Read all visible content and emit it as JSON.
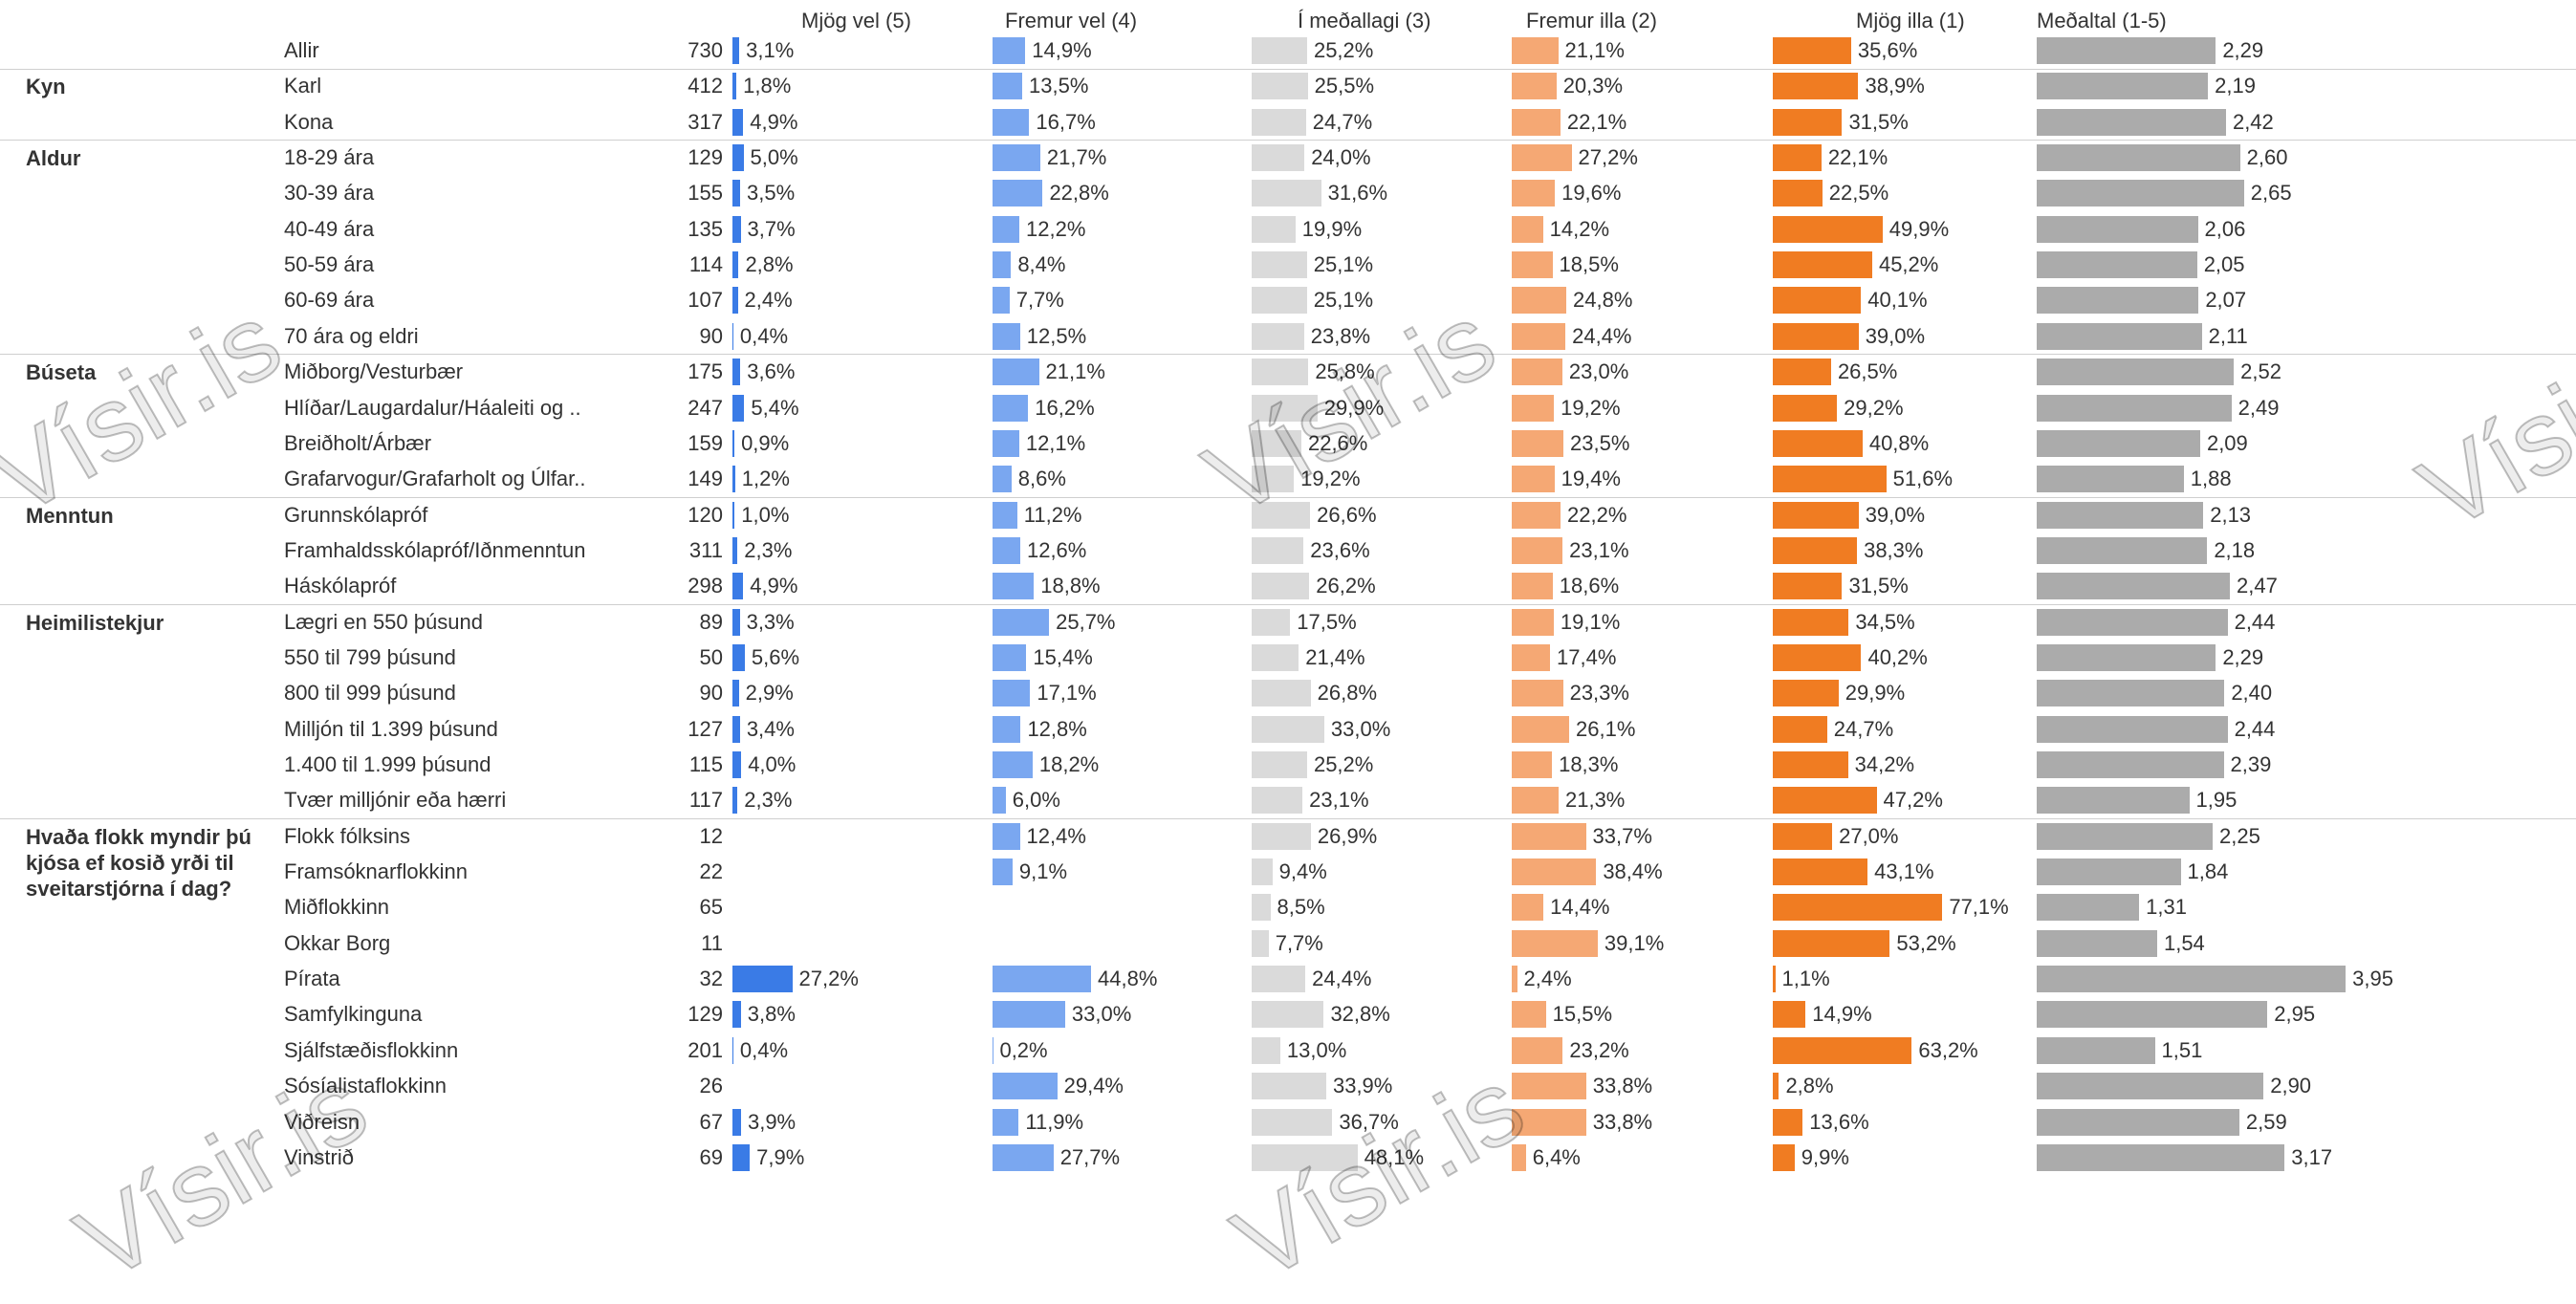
{
  "table": {
    "watermark": "Vísir.is",
    "columns": [
      {
        "name": "Mjög vel (5)",
        "color": "#3a7be6"
      },
      {
        "name": "Fremur vel (4)",
        "color": "#7aa7f0"
      },
      {
        "name": "Í meðallagi (3)",
        "color": "#dadada"
      },
      {
        "name": "Fremur illa (2)",
        "color": "#f5a874"
      },
      {
        "name": "Mjög illa (1)",
        "color": "#f07c22"
      },
      {
        "name": "Meðaltal (1-5)",
        "color": "#ababab"
      }
    ],
    "groups": [
      {
        "rows": [
          {
            "label": "Allir",
            "n": 730,
            "values": [
              3.1,
              14.9,
              25.2,
              21.1,
              35.6,
              2.29
            ],
            "value_labels": [
              "3,1%",
              "14,9%",
              "25,2%",
              "21,1%",
              "35,6%",
              "2,29"
            ]
          }
        ]
      },
      {
        "name": "Kyn",
        "rows": [
          {
            "label": "Karl",
            "n": 412,
            "values": [
              1.8,
              13.5,
              25.5,
              20.3,
              38.9,
              2.19
            ],
            "value_labels": [
              "1,8%",
              "13,5%",
              "25,5%",
              "20,3%",
              "38,9%",
              "2,19"
            ]
          },
          {
            "label": "Kona",
            "n": 317,
            "values": [
              4.9,
              16.7,
              24.7,
              22.1,
              31.5,
              2.42
            ],
            "value_labels": [
              "4,9%",
              "16,7%",
              "24,7%",
              "22,1%",
              "31,5%",
              "2,42"
            ]
          }
        ]
      },
      {
        "name": "Aldur",
        "rows": [
          {
            "label": "18-29 ára",
            "n": 129,
            "values": [
              5.0,
              21.7,
              24.0,
              27.2,
              22.1,
              2.6
            ],
            "value_labels": [
              "5,0%",
              "21,7%",
              "24,0%",
              "27,2%",
              "22,1%",
              "2,60"
            ]
          },
          {
            "label": "30-39 ára",
            "n": 155,
            "values": [
              3.5,
              22.8,
              31.6,
              19.6,
              22.5,
              2.65
            ],
            "value_labels": [
              "3,5%",
              "22,8%",
              "31,6%",
              "19,6%",
              "22,5%",
              "2,65"
            ]
          },
          {
            "label": "40-49 ára",
            "n": 135,
            "values": [
              3.7,
              12.2,
              19.9,
              14.2,
              49.9,
              2.06
            ],
            "value_labels": [
              "3,7%",
              "12,2%",
              "19,9%",
              "14,2%",
              "49,9%",
              "2,06"
            ]
          },
          {
            "label": "50-59 ára",
            "n": 114,
            "values": [
              2.8,
              8.4,
              25.1,
              18.5,
              45.2,
              2.05
            ],
            "value_labels": [
              "2,8%",
              "8,4%",
              "25,1%",
              "18,5%",
              "45,2%",
              "2,05"
            ]
          },
          {
            "label": "60-69 ára",
            "n": 107,
            "values": [
              2.4,
              7.7,
              25.1,
              24.8,
              40.1,
              2.07
            ],
            "value_labels": [
              "2,4%",
              "7,7%",
              "25,1%",
              "24,8%",
              "40,1%",
              "2,07"
            ]
          },
          {
            "label": "70 ára og eldri",
            "n": 90,
            "values": [
              0.4,
              12.5,
              23.8,
              24.4,
              39.0,
              2.11
            ],
            "value_labels": [
              "0,4%",
              "12,5%",
              "23,8%",
              "24,4%",
              "39,0%",
              "2,11"
            ]
          }
        ]
      },
      {
        "name": "Búseta",
        "rows": [
          {
            "label": "Miðborg/Vesturbær",
            "n": 175,
            "values": [
              3.6,
              21.1,
              25.8,
              23.0,
              26.5,
              2.52
            ],
            "value_labels": [
              "3,6%",
              "21,1%",
              "25,8%",
              "23,0%",
              "26,5%",
              "2,52"
            ]
          },
          {
            "label": "Hlíðar/Laugardalur/Háaleiti og ..",
            "n": 247,
            "values": [
              5.4,
              16.2,
              29.9,
              19.2,
              29.2,
              2.49
            ],
            "value_labels": [
              "5,4%",
              "16,2%",
              "29,9%",
              "19,2%",
              "29,2%",
              "2,49"
            ]
          },
          {
            "label": "Breiðholt/Árbær",
            "n": 159,
            "values": [
              0.9,
              12.1,
              22.6,
              23.5,
              40.8,
              2.09
            ],
            "value_labels": [
              "0,9%",
              "12,1%",
              "22,6%",
              "23,5%",
              "40,8%",
              "2,09"
            ]
          },
          {
            "label": "Grafarvogur/Grafarholt og Úlfar..",
            "n": 149,
            "values": [
              1.2,
              8.6,
              19.2,
              19.4,
              51.6,
              1.88
            ],
            "value_labels": [
              "1,2%",
              "8,6%",
              "19,2%",
              "19,4%",
              "51,6%",
              "1,88"
            ]
          }
        ]
      },
      {
        "name": "Menntun",
        "rows": [
          {
            "label": "Grunnskólapróf",
            "n": 120,
            "values": [
              1.0,
              11.2,
              26.6,
              22.2,
              39.0,
              2.13
            ],
            "value_labels": [
              "1,0%",
              "11,2%",
              "26,6%",
              "22,2%",
              "39,0%",
              "2,13"
            ]
          },
          {
            "label": "Framhaldsskólapróf/Iðnmenntun",
            "n": 311,
            "values": [
              2.3,
              12.6,
              23.6,
              23.1,
              38.3,
              2.18
            ],
            "value_labels": [
              "2,3%",
              "12,6%",
              "23,6%",
              "23,1%",
              "38,3%",
              "2,18"
            ]
          },
          {
            "label": "Háskólapróf",
            "n": 298,
            "values": [
              4.9,
              18.8,
              26.2,
              18.6,
              31.5,
              2.47
            ],
            "value_labels": [
              "4,9%",
              "18,8%",
              "26,2%",
              "18,6%",
              "31,5%",
              "2,47"
            ]
          }
        ]
      },
      {
        "name": "Heimilistekjur",
        "rows": [
          {
            "label": "Lægri en 550 þúsund",
            "n": 89,
            "values": [
              3.3,
              25.7,
              17.5,
              19.1,
              34.5,
              2.44
            ],
            "value_labels": [
              "3,3%",
              "25,7%",
              "17,5%",
              "19,1%",
              "34,5%",
              "2,44"
            ]
          },
          {
            "label": "550 til 799 þúsund",
            "n": 50,
            "values": [
              5.6,
              15.4,
              21.4,
              17.4,
              40.2,
              2.29
            ],
            "value_labels": [
              "5,6%",
              "15,4%",
              "21,4%",
              "17,4%",
              "40,2%",
              "2,29"
            ]
          },
          {
            "label": "800 til 999 þúsund",
            "n": 90,
            "values": [
              2.9,
              17.1,
              26.8,
              23.3,
              29.9,
              2.4
            ],
            "value_labels": [
              "2,9%",
              "17,1%",
              "26,8%",
              "23,3%",
              "29,9%",
              "2,40"
            ]
          },
          {
            "label": "Milljón til 1.399 þúsund",
            "n": 127,
            "values": [
              3.4,
              12.8,
              33.0,
              26.1,
              24.7,
              2.44
            ],
            "value_labels": [
              "3,4%",
              "12,8%",
              "33,0%",
              "26,1%",
              "24,7%",
              "2,44"
            ]
          },
          {
            "label": "1.400 til 1.999 þúsund",
            "n": 115,
            "values": [
              4.0,
              18.2,
              25.2,
              18.3,
              34.2,
              2.39
            ],
            "value_labels": [
              "4,0%",
              "18,2%",
              "25,2%",
              "18,3%",
              "34,2%",
              "2,39"
            ]
          },
          {
            "label": "Tvær milljónir eða hærri",
            "n": 117,
            "values": [
              2.3,
              6.0,
              23.1,
              21.3,
              47.2,
              1.95
            ],
            "value_labels": [
              "2,3%",
              "6,0%",
              "23,1%",
              "21,3%",
              "47,2%",
              "1,95"
            ]
          }
        ]
      },
      {
        "name": "Hvaða flokk myndir þú kjósa ef kosið yrði til sveitarstjórna í dag?",
        "rows": [
          {
            "label": "Flokk fólksins",
            "n": 12,
            "values": [
              null,
              12.4,
              26.9,
              33.7,
              27.0,
              2.25
            ],
            "value_labels": [
              null,
              "12,4%",
              "26,9%",
              "33,7%",
              "27,0%",
              "2,25"
            ]
          },
          {
            "label": "Framsóknarflokkinn",
            "n": 22,
            "values": [
              null,
              9.1,
              9.4,
              38.4,
              43.1,
              1.84
            ],
            "value_labels": [
              null,
              "9,1%",
              "9,4%",
              "38,4%",
              "43,1%",
              "1,84"
            ]
          },
          {
            "label": "Miðflokkinn",
            "n": 65,
            "values": [
              null,
              null,
              8.5,
              14.4,
              77.1,
              1.31
            ],
            "value_labels": [
              null,
              null,
              "8,5%",
              "14,4%",
              "77,1%",
              "1,31"
            ]
          },
          {
            "label": "Okkar Borg",
            "n": 11,
            "values": [
              null,
              null,
              7.7,
              39.1,
              53.2,
              1.54
            ],
            "value_labels": [
              null,
              null,
              "7,7%",
              "39,1%",
              "53,2%",
              "1,54"
            ]
          },
          {
            "label": "Pírata",
            "n": 32,
            "values": [
              27.2,
              44.8,
              24.4,
              2.4,
              1.1,
              3.95
            ],
            "value_labels": [
              "27,2%",
              "44,8%",
              "24,4%",
              "2,4%",
              "1,1%",
              "3,95"
            ]
          },
          {
            "label": "Samfylkinguna",
            "n": 129,
            "values": [
              3.8,
              33.0,
              32.8,
              15.5,
              14.9,
              2.95
            ],
            "value_labels": [
              "3,8%",
              "33,0%",
              "32,8%",
              "15,5%",
              "14,9%",
              "2,95"
            ]
          },
          {
            "label": "Sjálfstæðisflokkinn",
            "n": 201,
            "values": [
              0.4,
              0.2,
              13.0,
              23.2,
              63.2,
              1.51
            ],
            "value_labels": [
              "0,4%",
              "0,2%",
              "13,0%",
              "23,2%",
              "63,2%",
              "1,51"
            ]
          },
          {
            "label": "Sósíalistaflokkinn",
            "n": 26,
            "values": [
              null,
              29.4,
              33.9,
              33.8,
              2.8,
              2.9
            ],
            "value_labels": [
              null,
              "29,4%",
              "33,9%",
              "33,8%",
              "2,8%",
              "2,90"
            ]
          },
          {
            "label": "Viðreisn",
            "n": 67,
            "values": [
              3.9,
              11.9,
              36.7,
              33.8,
              13.6,
              2.59
            ],
            "value_labels": [
              "3,9%",
              "11,9%",
              "36,7%",
              "33,8%",
              "13,6%",
              "2,59"
            ]
          },
          {
            "label": "Vinstrið",
            "n": 69,
            "values": [
              7.9,
              27.7,
              48.1,
              6.4,
              9.9,
              3.17
            ],
            "value_labels": [
              "7,9%",
              "27,7%",
              "48,1%",
              "6,4%",
              "9,9%",
              "3,17"
            ]
          }
        ]
      }
    ]
  }
}
